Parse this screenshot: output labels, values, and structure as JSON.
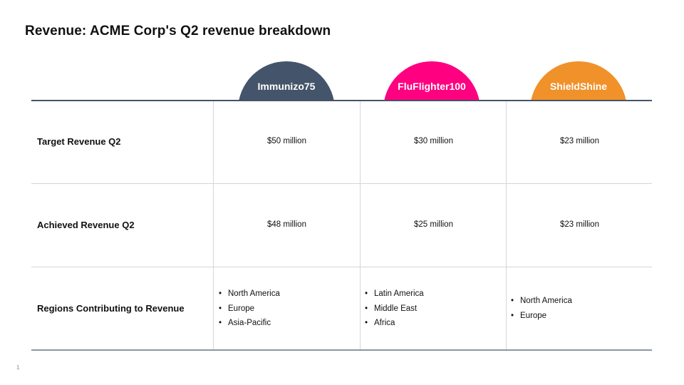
{
  "slide": {
    "title": "Revenue: ACME Corp's Q2 revenue breakdown",
    "page_number": "1"
  },
  "colors": {
    "immunizo75": "#44546a",
    "fluflighter100": "#ff0080",
    "shieldshine": "#f0912a",
    "header_rule": "#44546a",
    "grid": "#d6d6d6"
  },
  "products": [
    {
      "name": "Immunizo75"
    },
    {
      "name": "FluFlighter100"
    },
    {
      "name": "ShieldShine"
    }
  ],
  "rows": [
    {
      "label": "Target Revenue Q2",
      "values": [
        "$50 million",
        "$30 million",
        "$23 million"
      ]
    },
    {
      "label": "Achieved Revenue Q2",
      "values": [
        "$48 million",
        "$25 million",
        "$23 million"
      ]
    },
    {
      "label": "Regions Contributing to Revenue",
      "regions": [
        [
          "North America",
          "Europe",
          "Asia-Pacific"
        ],
        [
          "Latin America",
          "Middle East",
          "Africa"
        ],
        [
          "North America",
          "Europe"
        ]
      ]
    }
  ]
}
